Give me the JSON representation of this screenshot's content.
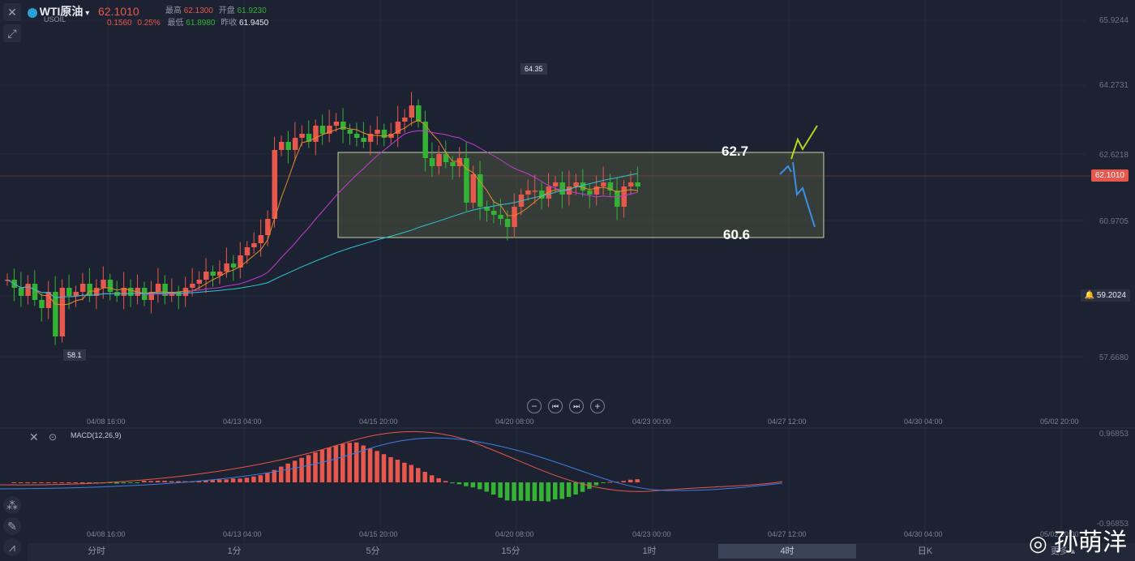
{
  "header": {
    "symbol": "WTI原油",
    "sub": "USOIL",
    "price": "62.1010",
    "change": "0.1560",
    "change_pct": "0.25%",
    "high_label": "最高",
    "high": "62.1300",
    "open_label": "开盘",
    "open": "61.9230",
    "low_label": "最低",
    "low": "61.8980",
    "prev_label": "昨收",
    "prev": "61.9450"
  },
  "price_axis": [
    "65.9244",
    "64.2731",
    "62.6218",
    "60.9705",
    "59.2024",
    "57.6680"
  ],
  "current_price_tag": "62.1010",
  "alert_price_tag": "59.2024",
  "annotations": {
    "box_top": "62.7",
    "box_bottom": "60.6",
    "peak": "64.35",
    "trough": "58.1"
  },
  "time_axis": [
    "04/08 16:00",
    "04/13 04:00",
    "04/15 20:00",
    "04/20 08:00",
    "04/23 00:00",
    "04/27 12:00",
    "04/30 04:00",
    "05/02 20:00"
  ],
  "macd": {
    "label": "MACD(12,26,9)",
    "axis_top": "0.96853",
    "axis_bottom": "-0.96853"
  },
  "timeframes": [
    "分时",
    "1分",
    "5分",
    "15分",
    "1时",
    "4时",
    "日K",
    "更多"
  ],
  "active_timeframe": "4时",
  "watermark": "孙萌洋",
  "colors": {
    "up": "#e8574b",
    "down": "#34b233",
    "ma_fast": "#e98b2a",
    "ma_slow": "#c13bd1",
    "ma_long": "#2ec5d0",
    "box": "#4b533f"
  },
  "chart_data": {
    "type": "candlestick",
    "ylim": [
      57.6,
      66.0
    ],
    "key_levels": {
      "resistance": 62.7,
      "support": 60.6,
      "high": 64.35,
      "low": 58.1
    },
    "last_close": 62.101
  }
}
